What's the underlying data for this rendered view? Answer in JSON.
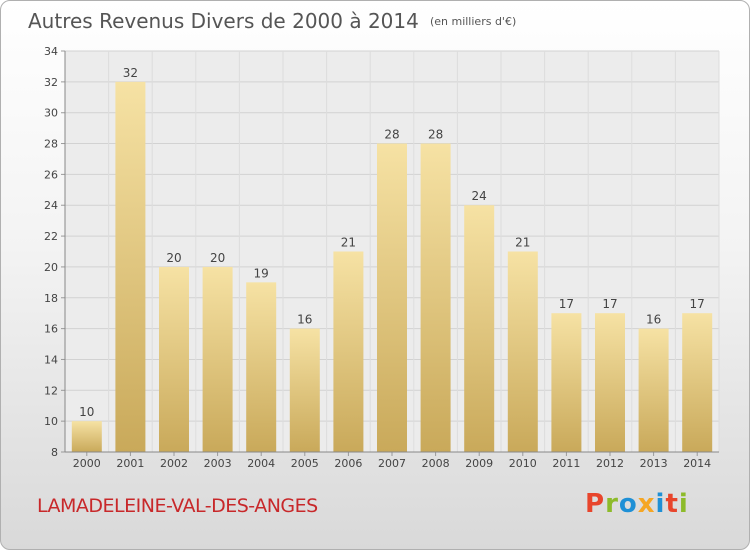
{
  "header": {
    "title": "Autres Revenus Divers de 2000 à 2014",
    "unit": "(en milliers d'€)"
  },
  "footer": {
    "city": "LAMADELEINE-VAL-DES-ANGES",
    "logo": "Proxiti",
    "logo_colors": [
      "#e8452c",
      "#8dbb2a",
      "#1e90d6",
      "#f5a623",
      "#1e90d6",
      "#e8452c",
      "#8dbb2a"
    ]
  },
  "chart_data": {
    "type": "bar",
    "title": "Autres Revenus Divers de 2000 à 2014",
    "subtitle": "(en milliers d'€)",
    "xlabel": "",
    "ylabel": "",
    "categories": [
      "2000",
      "2001",
      "2002",
      "2003",
      "2004",
      "2005",
      "2006",
      "2007",
      "2008",
      "2009",
      "2010",
      "2011",
      "2012",
      "2013",
      "2014"
    ],
    "values": [
      10,
      32,
      20,
      20,
      19,
      16,
      21,
      28,
      28,
      24,
      21,
      17,
      17,
      16,
      17
    ],
    "ylim": [
      8,
      34
    ],
    "yticks": [
      8,
      10,
      12,
      14,
      16,
      18,
      20,
      22,
      24,
      26,
      28,
      30,
      32,
      34
    ],
    "grid": true,
    "bar_color_top": "#f6e2a4",
    "bar_color_bottom": "#c9a95a"
  }
}
